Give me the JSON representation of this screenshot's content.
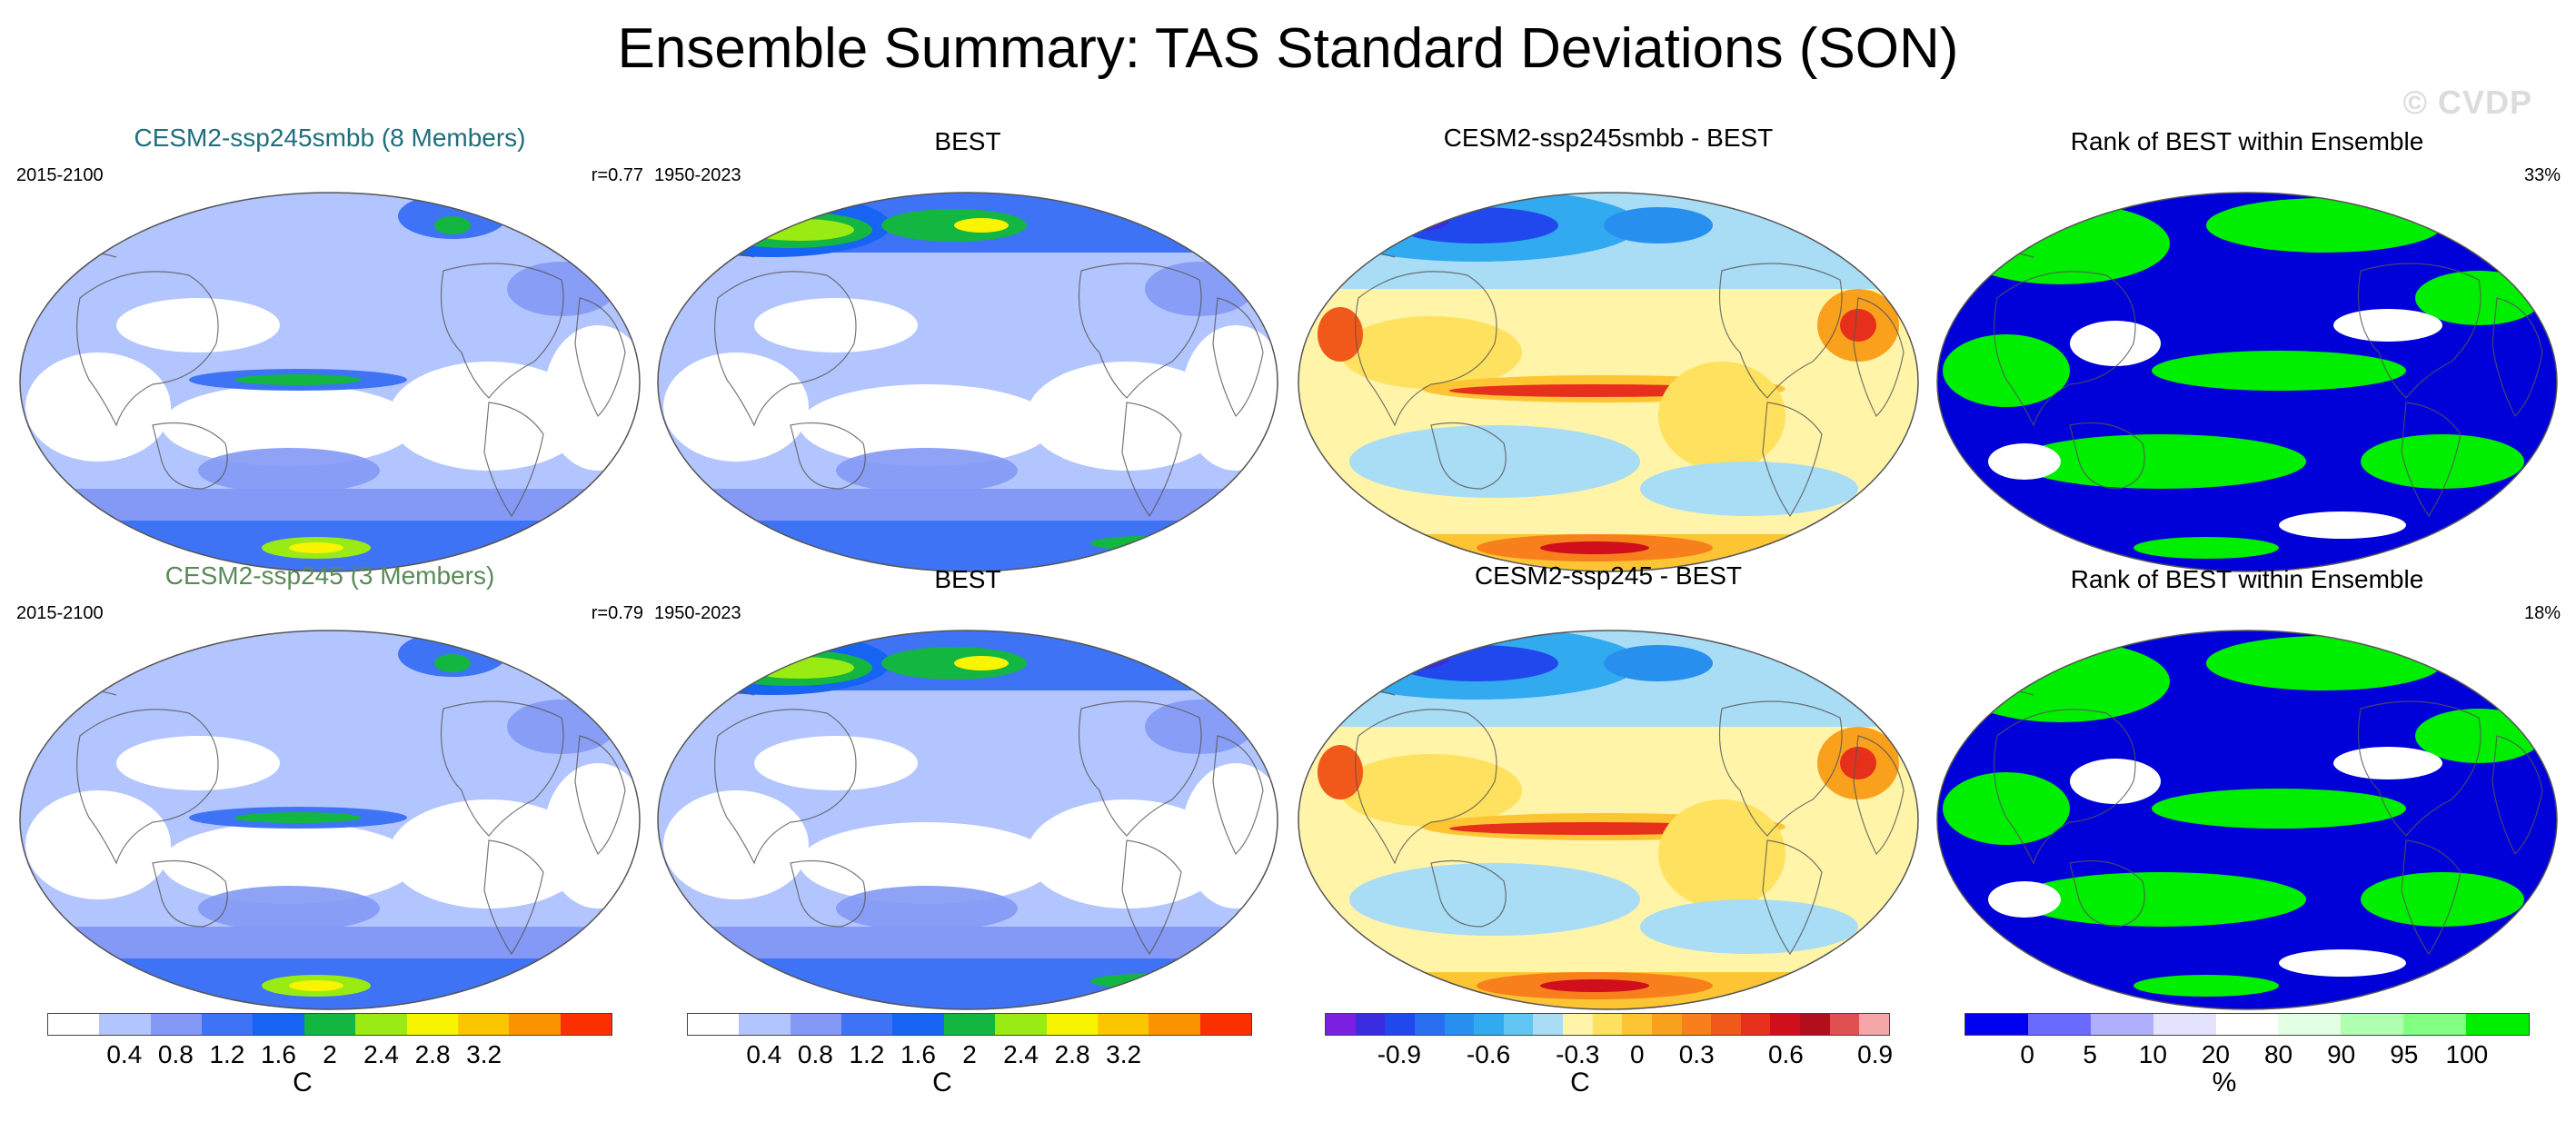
{
  "title": "Ensemble Summary: TAS Standard Deviations (SON)",
  "watermark": "© CVDP",
  "colors": {
    "title_model1": "#1e6e7c",
    "title_model2": "#5a8a58",
    "ocean_light": "#b3c5ff",
    "land_white": "#ffffff",
    "rank_blue": "#0000d8",
    "rank_green": "#00ee00"
  },
  "panels": [
    {
      "id": "r1c1",
      "title": "CESM2-ssp245smbb (8 Members)",
      "title_color": "model1",
      "left_label": "2015-2100",
      "right_label": "r=0.77",
      "style": "std"
    },
    {
      "id": "r1c2",
      "title": "BEST",
      "title_color": "black",
      "left_label": "1950-2023",
      "right_label": "",
      "style": "std_best"
    },
    {
      "id": "r1c3",
      "title": "CESM2-ssp245smbb - BEST",
      "title_color": "black",
      "left_label": "",
      "right_label": "",
      "style": "diff"
    },
    {
      "id": "r1c4",
      "title": "Rank of BEST within Ensemble",
      "title_color": "black",
      "left_label": "",
      "right_label": "33%",
      "style": "rank"
    },
    {
      "id": "r2c1",
      "title": "CESM2-ssp245 (3 Members)",
      "title_color": "model2",
      "left_label": "2015-2100",
      "right_label": "r=0.79",
      "style": "std"
    },
    {
      "id": "r2c2",
      "title": "BEST",
      "title_color": "black",
      "left_label": "1950-2023",
      "right_label": "",
      "style": "std_best"
    },
    {
      "id": "r2c3",
      "title": "CESM2-ssp245 - BEST",
      "title_color": "black",
      "left_label": "",
      "right_label": "",
      "style": "diff"
    },
    {
      "id": "r2c4",
      "title": "Rank of BEST within Ensemble",
      "title_color": "black",
      "left_label": "",
      "right_label": "18%",
      "style": "rank"
    }
  ],
  "colorbars": [
    {
      "id": "cb1",
      "unit": "C",
      "colors": [
        "#ffffff",
        "#b3c5ff",
        "#8399f5",
        "#3f73f5",
        "#1763f3",
        "#13b640",
        "#9aeb13",
        "#f9f400",
        "#fbc500",
        "#fb9200",
        "#fb2f00"
      ],
      "ticks": [
        "0.4",
        "0.8",
        "1.2",
        "1.6",
        "2",
        "2.4",
        "2.8",
        "3.2"
      ]
    },
    {
      "id": "cb2",
      "unit": "C",
      "colors": [
        "#ffffff",
        "#b3c5ff",
        "#8399f5",
        "#3f73f5",
        "#1763f3",
        "#13b640",
        "#9aeb13",
        "#f9f400",
        "#fbc500",
        "#fb9200",
        "#fb2f00"
      ],
      "ticks": [
        "0.4",
        "0.8",
        "1.2",
        "1.6",
        "2",
        "2.4",
        "2.8",
        "3.2"
      ]
    },
    {
      "id": "cb3",
      "unit": "C",
      "colors": [
        "#7b1fe0",
        "#3a2de0",
        "#2148ec",
        "#2a6ff2",
        "#2790ee",
        "#31aaf0",
        "#62c6f4",
        "#a9dcf5",
        "#fff4a8",
        "#fee15e",
        "#fdc534",
        "#f9a11d",
        "#f7801d",
        "#f1591b",
        "#e7301b",
        "#d00e1c",
        "#b20e1c",
        "#e05050",
        "#f5a7a7"
      ],
      "ticks": [
        "-0.9",
        "-0.6",
        "-0.3",
        "0",
        "0.3",
        "0.6",
        "0.9"
      ]
    },
    {
      "id": "cb4",
      "unit": "%",
      "colors": [
        "#0000f0",
        "#6a6aff",
        "#b0b0ff",
        "#e3e3ff",
        "#ffffff",
        "#e3ffe3",
        "#b0ffb0",
        "#80ff80",
        "#00ee00"
      ],
      "ticks": [
        "0",
        "5",
        "10",
        "20",
        "80",
        "90",
        "95",
        "100"
      ]
    }
  ]
}
